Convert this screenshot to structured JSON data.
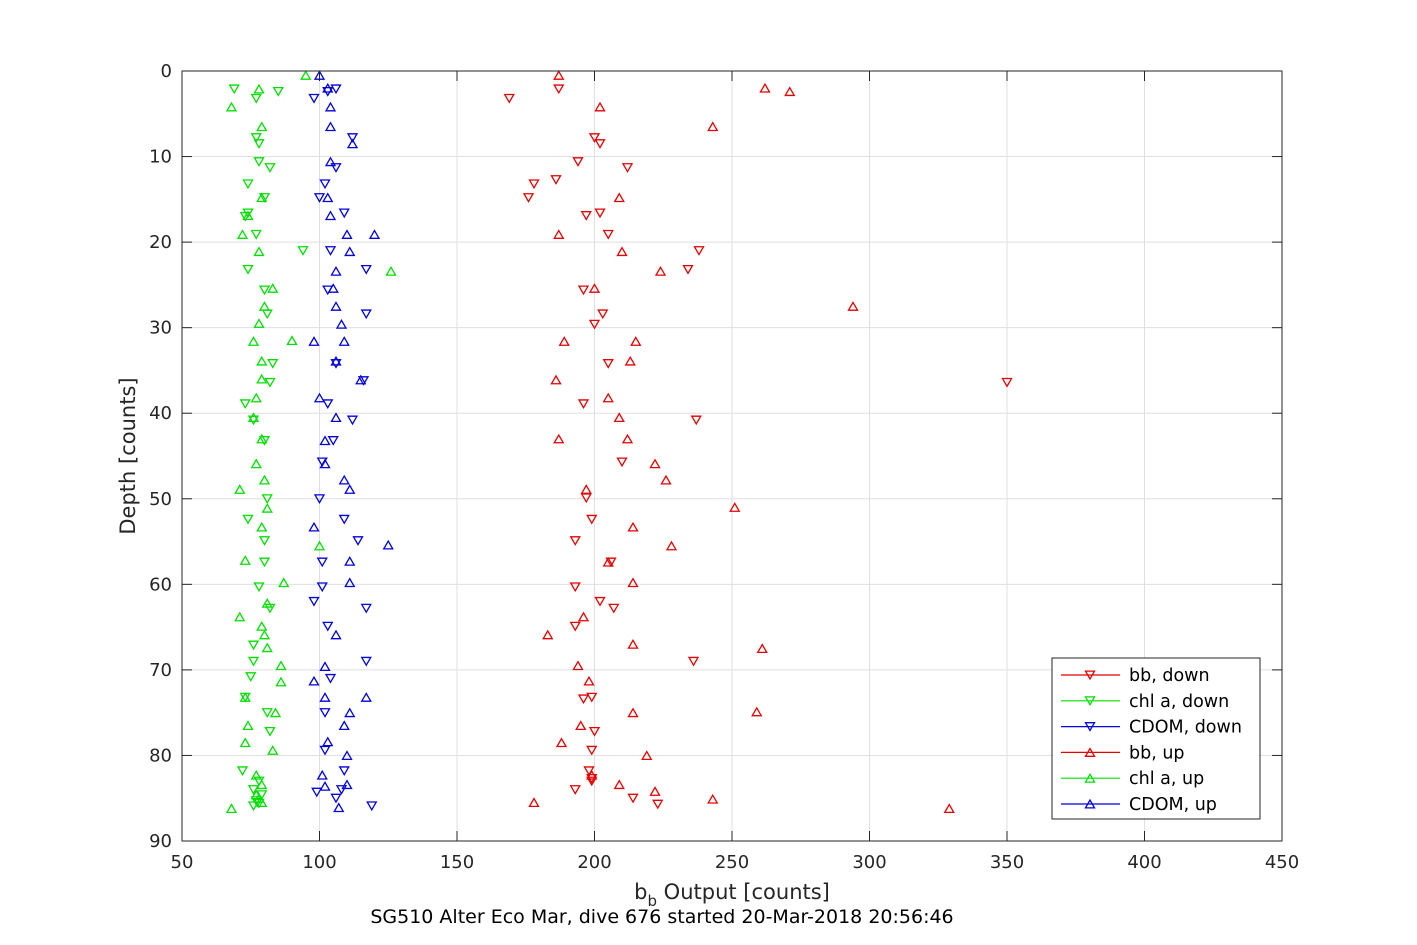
{
  "chart_data": {
    "type": "scatter",
    "title": "",
    "caption": "SG510 Alter Eco Mar, dive 676 started 20-Mar-2018 20:56:46",
    "xlabel": {
      "main": "b",
      "sub": "b",
      "rest": " Output [counts]"
    },
    "ylabel": "Depth [counts]",
    "xlim": [
      50,
      450
    ],
    "ylim": [
      0,
      90
    ],
    "y_reversed": true,
    "xticks": [
      50,
      100,
      150,
      200,
      250,
      300,
      350,
      400,
      450
    ],
    "yticks": [
      0,
      10,
      20,
      30,
      40,
      50,
      60,
      70,
      80,
      90
    ],
    "grid": true,
    "legend_position": "bottom-right",
    "series": [
      {
        "name": "bb, down",
        "color": "#e60000",
        "marker": "triangle-down",
        "points": [
          [
            169,
            3.2
          ],
          [
            187,
            2.1
          ],
          [
            200,
            7.8
          ],
          [
            202,
            8.5
          ],
          [
            194,
            10.6
          ],
          [
            212,
            11.3
          ],
          [
            186,
            12.7
          ],
          [
            178,
            13.2
          ],
          [
            176,
            14.8
          ],
          [
            202,
            16.6
          ],
          [
            197,
            16.9
          ],
          [
            205,
            19.1
          ],
          [
            238,
            21.0
          ],
          [
            234,
            23.2
          ],
          [
            196,
            25.6
          ],
          [
            203,
            28.4
          ],
          [
            200,
            29.6
          ],
          [
            205,
            34.2
          ],
          [
            350,
            36.4
          ],
          [
            196,
            38.9
          ],
          [
            237,
            40.8
          ],
          [
            210,
            45.7
          ],
          [
            197,
            49.9
          ],
          [
            199,
            52.4
          ],
          [
            193,
            54.9
          ],
          [
            206,
            57.4
          ],
          [
            193,
            60.3
          ],
          [
            202,
            62.0
          ],
          [
            207,
            62.8
          ],
          [
            193,
            64.9
          ],
          [
            236,
            69.0
          ],
          [
            199,
            73.2
          ],
          [
            196,
            73.4
          ],
          [
            200,
            77.2
          ],
          [
            199,
            79.4
          ],
          [
            198,
            81.8
          ],
          [
            199,
            82.7
          ],
          [
            199,
            83.0
          ],
          [
            193,
            84.0
          ],
          [
            214,
            85.0
          ],
          [
            223,
            85.7
          ]
        ]
      },
      {
        "name": "chl a, down",
        "color": "#00e000",
        "marker": "triangle-down",
        "points": [
          [
            69,
            2.1
          ],
          [
            85,
            2.4
          ],
          [
            77,
            3.2
          ],
          [
            77,
            7.8
          ],
          [
            78,
            8.5
          ],
          [
            78,
            10.6
          ],
          [
            82,
            11.3
          ],
          [
            74,
            13.2
          ],
          [
            80,
            14.8
          ],
          [
            74,
            16.6
          ],
          [
            73,
            17.0
          ],
          [
            77,
            19.1
          ],
          [
            94,
            21.0
          ],
          [
            74,
            23.2
          ],
          [
            80,
            25.6
          ],
          [
            81,
            28.4
          ],
          [
            83,
            34.2
          ],
          [
            82,
            36.4
          ],
          [
            73,
            38.9
          ],
          [
            76,
            40.8
          ],
          [
            80,
            43.2
          ],
          [
            81,
            50.0
          ],
          [
            74,
            52.4
          ],
          [
            80,
            54.9
          ],
          [
            80,
            57.4
          ],
          [
            78,
            60.3
          ],
          [
            82,
            62.8
          ],
          [
            76,
            67.1
          ],
          [
            76,
            69.0
          ],
          [
            75,
            70.8
          ],
          [
            73,
            73.2
          ],
          [
            81,
            75.0
          ],
          [
            82,
            77.2
          ],
          [
            72,
            81.8
          ],
          [
            78,
            83.0
          ],
          [
            76,
            84.0
          ],
          [
            79,
            84.6
          ],
          [
            77,
            85.3
          ],
          [
            78,
            85.6
          ],
          [
            76,
            85.9
          ]
        ]
      },
      {
        "name": "CDOM, down",
        "color": "#0000e0",
        "marker": "triangle-down",
        "points": [
          [
            106,
            2.1
          ],
          [
            98,
            3.2
          ],
          [
            103,
            2.4
          ],
          [
            112,
            7.8
          ],
          [
            106,
            11.3
          ],
          [
            102,
            13.2
          ],
          [
            100,
            14.8
          ],
          [
            109,
            16.6
          ],
          [
            104,
            21.0
          ],
          [
            117,
            23.2
          ],
          [
            103,
            25.6
          ],
          [
            117,
            28.4
          ],
          [
            106,
            34.2
          ],
          [
            116,
            36.2
          ],
          [
            103,
            38.9
          ],
          [
            112,
            40.8
          ],
          [
            105,
            43.2
          ],
          [
            101,
            45.7
          ],
          [
            100,
            50.0
          ],
          [
            109,
            52.4
          ],
          [
            114,
            54.9
          ],
          [
            101,
            57.4
          ],
          [
            101,
            60.3
          ],
          [
            98,
            62.0
          ],
          [
            117,
            62.8
          ],
          [
            103,
            64.9
          ],
          [
            117,
            69.0
          ],
          [
            104,
            71.0
          ],
          [
            102,
            75.0
          ],
          [
            102,
            79.4
          ],
          [
            109,
            81.8
          ],
          [
            108,
            84.0
          ],
          [
            106,
            85.0
          ],
          [
            99,
            84.3
          ],
          [
            119,
            85.9
          ]
        ]
      },
      {
        "name": "bb, up",
        "color": "#e60000",
        "marker": "triangle-up",
        "points": [
          [
            187,
            0.5
          ],
          [
            262,
            2.0
          ],
          [
            271,
            2.4
          ],
          [
            202,
            4.2
          ],
          [
            243,
            6.5
          ],
          [
            209,
            14.8
          ],
          [
            187,
            19.1
          ],
          [
            210,
            21.1
          ],
          [
            224,
            23.4
          ],
          [
            200,
            25.4
          ],
          [
            294,
            27.5
          ],
          [
            189,
            31.6
          ],
          [
            215,
            31.6
          ],
          [
            213,
            33.9
          ],
          [
            186,
            36.1
          ],
          [
            205,
            38.2
          ],
          [
            209,
            40.5
          ],
          [
            187,
            43.0
          ],
          [
            212,
            43.0
          ],
          [
            222,
            45.9
          ],
          [
            226,
            47.8
          ],
          [
            197,
            48.9
          ],
          [
            251,
            51.0
          ],
          [
            214,
            53.3
          ],
          [
            228,
            55.5
          ],
          [
            205,
            57.4
          ],
          [
            214,
            59.8
          ],
          [
            196,
            63.8
          ],
          [
            183,
            65.9
          ],
          [
            214,
            67.0
          ],
          [
            261,
            67.5
          ],
          [
            194,
            69.5
          ],
          [
            198,
            71.3
          ],
          [
            214,
            75.0
          ],
          [
            259,
            74.9
          ],
          [
            195,
            76.5
          ],
          [
            188,
            78.5
          ],
          [
            219,
            80.0
          ],
          [
            199,
            82.3
          ],
          [
            209,
            83.4
          ],
          [
            222,
            84.2
          ],
          [
            243,
            85.1
          ],
          [
            178,
            85.5
          ],
          [
            329,
            86.2
          ]
        ]
      },
      {
        "name": "chl a, up",
        "color": "#00e000",
        "marker": "triangle-up",
        "points": [
          [
            95,
            0.5
          ],
          [
            78,
            2.1
          ],
          [
            68,
            4.2
          ],
          [
            79,
            6.5
          ],
          [
            79,
            14.8
          ],
          [
            74,
            16.9
          ],
          [
            72,
            19.1
          ],
          [
            78,
            21.1
          ],
          [
            126,
            23.4
          ],
          [
            83,
            25.4
          ],
          [
            80,
            27.5
          ],
          [
            78,
            29.5
          ],
          [
            90,
            31.5
          ],
          [
            76,
            31.6
          ],
          [
            79,
            33.9
          ],
          [
            79,
            36.0
          ],
          [
            77,
            38.2
          ],
          [
            76,
            40.5
          ],
          [
            79,
            43.0
          ],
          [
            77,
            45.9
          ],
          [
            80,
            47.8
          ],
          [
            71,
            48.9
          ],
          [
            81,
            51.1
          ],
          [
            79,
            53.3
          ],
          [
            100,
            55.5
          ],
          [
            73,
            57.2
          ],
          [
            87,
            59.8
          ],
          [
            81,
            62.2
          ],
          [
            71,
            63.8
          ],
          [
            79,
            64.9
          ],
          [
            80,
            65.9
          ],
          [
            81,
            67.4
          ],
          [
            86,
            69.5
          ],
          [
            86,
            71.4
          ],
          [
            73,
            73.2
          ],
          [
            84,
            75.0
          ],
          [
            74,
            76.5
          ],
          [
            73,
            78.5
          ],
          [
            83,
            79.4
          ],
          [
            77,
            82.3
          ],
          [
            79,
            83.4
          ],
          [
            77,
            84.6
          ],
          [
            78,
            85.0
          ],
          [
            79,
            85.5
          ],
          [
            68,
            86.2
          ]
        ]
      },
      {
        "name": "CDOM, up",
        "color": "#0000e0",
        "marker": "triangle-up",
        "points": [
          [
            100,
            0.5
          ],
          [
            103,
            2.0
          ],
          [
            104,
            4.2
          ],
          [
            104,
            6.5
          ],
          [
            112,
            8.5
          ],
          [
            104,
            10.6
          ],
          [
            103,
            14.8
          ],
          [
            104,
            16.9
          ],
          [
            110,
            19.1
          ],
          [
            120,
            19.1
          ],
          [
            111,
            21.1
          ],
          [
            106,
            23.4
          ],
          [
            105,
            25.4
          ],
          [
            106,
            27.5
          ],
          [
            108,
            29.6
          ],
          [
            98,
            31.6
          ],
          [
            109,
            31.6
          ],
          [
            106,
            33.9
          ],
          [
            115,
            36.1
          ],
          [
            100,
            38.2
          ],
          [
            106,
            40.5
          ],
          [
            102,
            43.2
          ],
          [
            102,
            45.9
          ],
          [
            109,
            47.8
          ],
          [
            111,
            48.9
          ],
          [
            98,
            53.3
          ],
          [
            125,
            55.4
          ],
          [
            111,
            57.3
          ],
          [
            111,
            59.8
          ],
          [
            106,
            65.9
          ],
          [
            102,
            69.6
          ],
          [
            98,
            71.3
          ],
          [
            102,
            73.2
          ],
          [
            117,
            73.2
          ],
          [
            111,
            75.0
          ],
          [
            109,
            76.5
          ],
          [
            103,
            78.4
          ],
          [
            110,
            80.0
          ],
          [
            101,
            82.3
          ],
          [
            110,
            83.4
          ],
          [
            102,
            83.6
          ],
          [
            107,
            86.1
          ]
        ]
      }
    ]
  }
}
